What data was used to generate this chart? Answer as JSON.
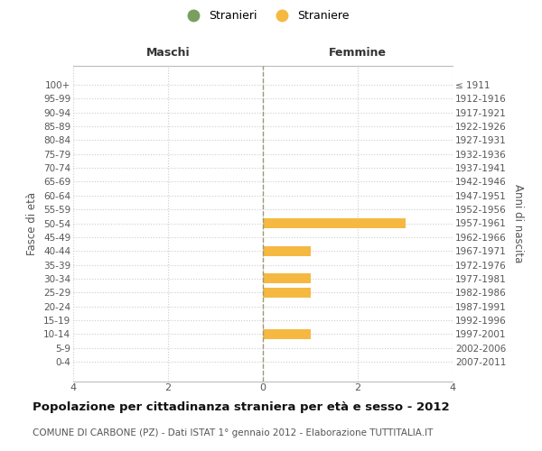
{
  "age_groups": [
    "100+",
    "95-99",
    "90-94",
    "85-89",
    "80-84",
    "75-79",
    "70-74",
    "65-69",
    "60-64",
    "55-59",
    "50-54",
    "45-49",
    "40-44",
    "35-39",
    "30-34",
    "25-29",
    "20-24",
    "15-19",
    "10-14",
    "5-9",
    "0-4"
  ],
  "birth_years": [
    "≤ 1911",
    "1912-1916",
    "1917-1921",
    "1922-1926",
    "1927-1931",
    "1932-1936",
    "1937-1941",
    "1942-1946",
    "1947-1951",
    "1952-1956",
    "1957-1961",
    "1962-1966",
    "1967-1971",
    "1972-1976",
    "1977-1981",
    "1982-1986",
    "1987-1991",
    "1992-1996",
    "1997-2001",
    "2002-2006",
    "2007-2011"
  ],
  "males": [
    0,
    0,
    0,
    0,
    0,
    0,
    0,
    0,
    0,
    0,
    0,
    0,
    0,
    0,
    0,
    0,
    0,
    0,
    0,
    0,
    0
  ],
  "females": [
    0,
    0,
    0,
    0,
    0,
    0,
    0,
    0,
    0,
    0,
    3,
    0,
    1,
    0,
    1,
    1,
    0,
    0,
    1,
    0,
    0
  ],
  "male_color": "#7a9e5e",
  "female_color": "#f5b942",
  "background_color": "#ffffff",
  "grid_color": "#cccccc",
  "center_line_color": "#999977",
  "xlim": 4,
  "title": "Popolazione per cittadinanza straniera per età e sesso - 2012",
  "subtitle": "COMUNE DI CARBONE (PZ) - Dati ISTAT 1° gennaio 2012 - Elaborazione TUTTITALIA.IT",
  "ylabel_left": "Fasce di età",
  "ylabel_right": "Anni di nascita",
  "header_left": "Maschi",
  "header_right": "Femmine",
  "legend_male": "Stranieri",
  "legend_female": "Straniere",
  "bar_height": 0.72
}
